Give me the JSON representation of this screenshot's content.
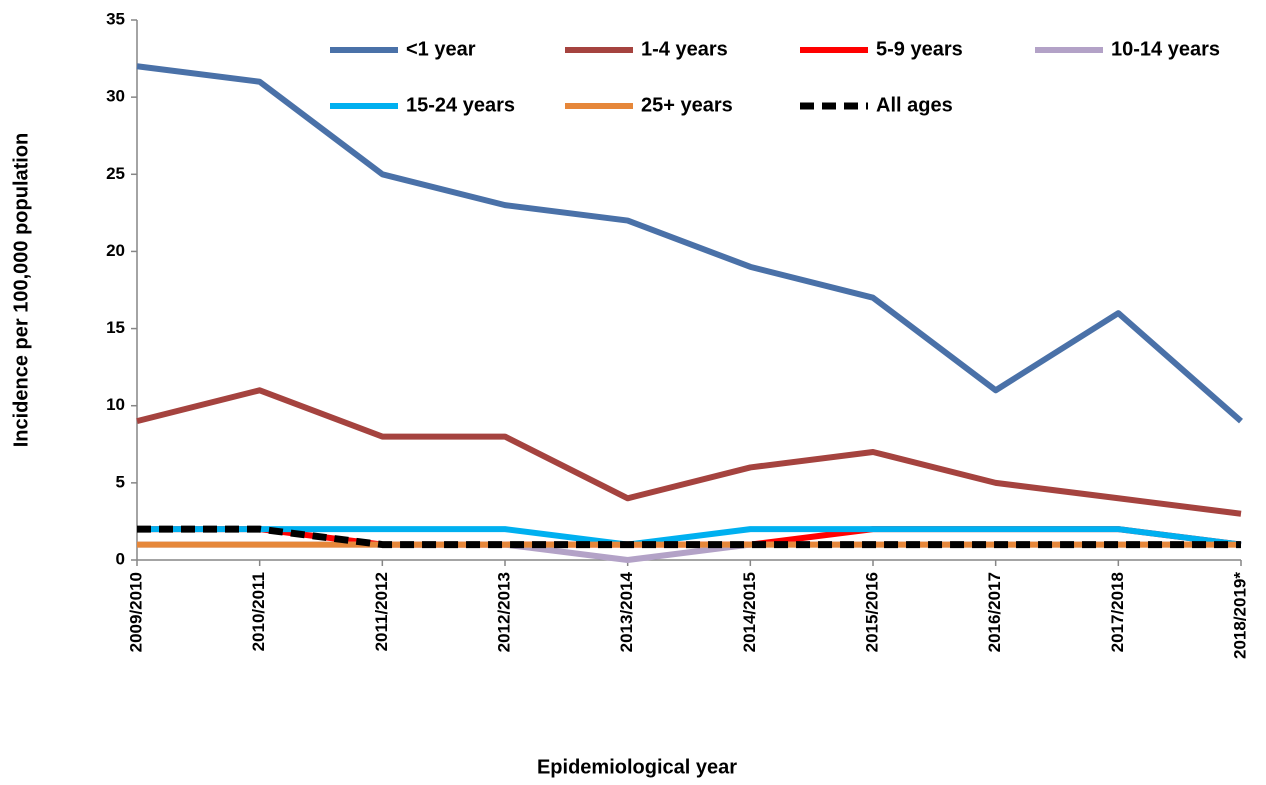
{
  "chart_data": {
    "type": "line",
    "x_label": "Epidemiological year",
    "y_label": "Incidence per 100,000 population",
    "categories": [
      "2009/2010",
      "2010/2011",
      "2011/2012",
      "2012/2013",
      "2013/2014",
      "2014/2015",
      "2015/2016",
      "2016/2017",
      "2017/2018",
      "2018/2019*"
    ],
    "series": [
      {
        "name": "<1 year",
        "color": "#4a71a8",
        "values": [
          32,
          31,
          25,
          23,
          22,
          19,
          17,
          11,
          16,
          9
        ]
      },
      {
        "name": "1-4 years",
        "color": "#a5433f",
        "values": [
          9,
          11,
          8,
          8,
          4,
          6,
          7,
          5,
          4,
          3
        ]
      },
      {
        "name": "5-9 years",
        "color": "#ff0000",
        "values": [
          2,
          2,
          1,
          1,
          1,
          1,
          2,
          2,
          2,
          1
        ]
      },
      {
        "name": "10-14 years",
        "color": "#b3a2c7",
        "values": [
          1,
          1,
          1,
          1,
          0,
          1,
          1,
          1,
          1,
          1
        ]
      },
      {
        "name": "15-24 years",
        "color": "#00b0f0",
        "values": [
          2,
          2,
          2,
          2,
          1,
          2,
          2,
          2,
          2,
          1
        ]
      },
      {
        "name": "25+ years",
        "color": "#e6873a",
        "values": [
          1,
          1,
          1,
          1,
          1,
          1,
          1,
          1,
          1,
          1
        ]
      },
      {
        "name": "All ages",
        "color": "#000000",
        "dashed": true,
        "values": [
          2,
          2,
          1,
          1,
          1,
          1,
          1,
          1,
          1,
          1
        ]
      }
    ],
    "ylim": [
      0,
      35
    ],
    "yticks": [
      0,
      5,
      10,
      15,
      20,
      25,
      30,
      35
    ],
    "grid": false
  }
}
